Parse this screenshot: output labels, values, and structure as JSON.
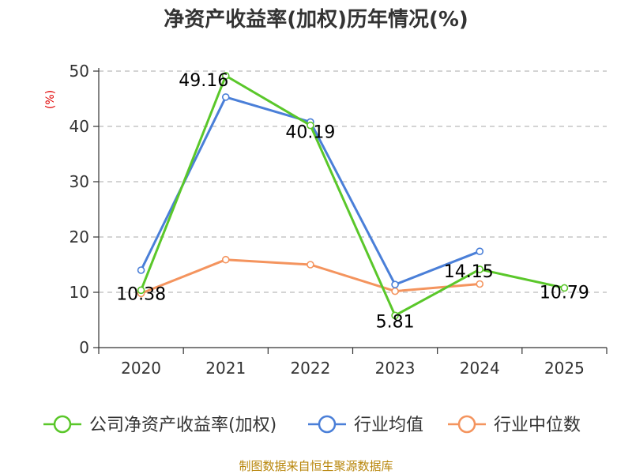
{
  "chart_data": {
    "type": "line",
    "title": "净资产收益率(加权)历年情况(%)",
    "ylabel": "(%)",
    "xlabel": "",
    "categories": [
      "2020",
      "2021",
      "2022",
      "2023",
      "2024",
      "2025"
    ],
    "ylim": [
      0,
      50
    ],
    "yticks": [
      0,
      10,
      20,
      30,
      40,
      50
    ],
    "grid": true,
    "legend_position": "bottom",
    "series": [
      {
        "name": "公司净资产收益率(加权)",
        "color": "#5ac72a",
        "values": [
          10.38,
          49.16,
          40.19,
          5.81,
          14.15,
          10.79
        ],
        "labels": [
          "10.38",
          "49.16",
          "40.19",
          "5.81",
          "14.15",
          "10.79"
        ]
      },
      {
        "name": "行业均值",
        "color": "#4a7fd8",
        "values": [
          14.0,
          45.3,
          40.8,
          11.4,
          17.4,
          null
        ]
      },
      {
        "name": "行业中位数",
        "color": "#f4945e",
        "values": [
          9.8,
          15.9,
          15.0,
          10.2,
          11.5,
          null
        ]
      }
    ]
  },
  "footer": {
    "source": "制图数据来自恒生聚源数据库"
  }
}
